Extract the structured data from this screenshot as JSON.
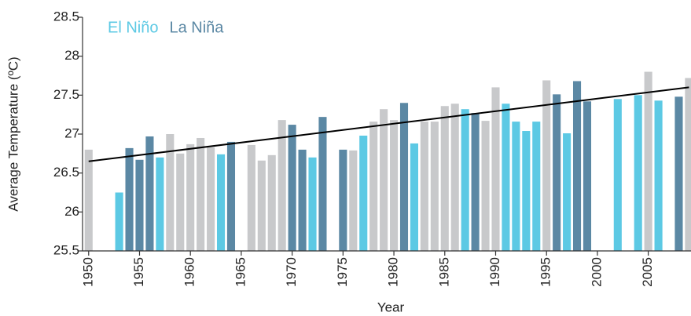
{
  "chart_data": {
    "type": "bar",
    "xlabel": "Year",
    "ylabel": "Average Temperature (ºC)",
    "legend": [
      {
        "name": "El Niño",
        "color": "#5cc9e4"
      },
      {
        "name": "La Niña",
        "color": "#5b88a4"
      }
    ],
    "x": [
      1950,
      1951,
      1952,
      1953,
      1954,
      1955,
      1956,
      1957,
      1958,
      1959,
      1960,
      1961,
      1962,
      1963,
      1964,
      1965,
      1966,
      1967,
      1968,
      1969,
      1970,
      1971,
      1972,
      1973,
      1974,
      1975,
      1976,
      1977,
      1978,
      1979,
      1980,
      1981,
      1982,
      1983,
      1984,
      1985,
      1986,
      1987,
      1988,
      1989,
      1990,
      1991,
      1992,
      1993,
      1994,
      1995,
      1996,
      1997,
      1998,
      1999,
      2000,
      2001,
      2002,
      2003,
      2004,
      2005,
      2006,
      2007,
      2008,
      2009
    ],
    "values": [
      26.8,
      null,
      null,
      26.25,
      26.82,
      26.67,
      26.97,
      26.7,
      27.0,
      26.75,
      26.87,
      26.95,
      26.83,
      26.74,
      26.9,
      null,
      26.86,
      26.66,
      26.73,
      27.18,
      27.12,
      26.8,
      26.7,
      27.22,
      null,
      26.8,
      26.79,
      26.98,
      27.16,
      27.32,
      27.18,
      27.4,
      26.88,
      27.16,
      27.16,
      27.36,
      27.39,
      27.32,
      27.27,
      27.17,
      27.6,
      27.39,
      27.16,
      27.04,
      27.16,
      27.69,
      27.51,
      27.01,
      27.68,
      27.42,
      null,
      null,
      27.45,
      null,
      27.5,
      27.8,
      27.43,
      null,
      27.48,
      27.72
    ],
    "colors": [
      "#c8c9cb",
      null,
      null,
      "#5cc9e4",
      "#5b88a4",
      "#5b88a4",
      "#5b88a4",
      "#5cc9e4",
      "#c8c9cb",
      "#c8c9cb",
      "#c8c9cb",
      "#c8c9cb",
      "#c8c9cb",
      "#5cc9e4",
      "#5b88a4",
      null,
      "#c8c9cb",
      "#c8c9cb",
      "#c8c9cb",
      "#c8c9cb",
      "#5b88a4",
      "#5b88a4",
      "#5cc9e4",
      "#5b88a4",
      null,
      "#5b88a4",
      "#c8c9cb",
      "#5cc9e4",
      "#c8c9cb",
      "#c8c9cb",
      "#c8c9cb",
      "#5b88a4",
      "#5cc9e4",
      "#c8c9cb",
      "#c8c9cb",
      "#c8c9cb",
      "#c8c9cb",
      "#5cc9e4",
      "#5b88a4",
      "#c8c9cb",
      "#c8c9cb",
      "#5cc9e4",
      "#5cc9e4",
      "#5cc9e4",
      "#5cc9e4",
      "#c8c9cb",
      "#5b88a4",
      "#5cc9e4",
      "#5b88a4",
      "#5b88a4",
      null,
      null,
      "#5cc9e4",
      null,
      "#5cc9e4",
      "#c8c9cb",
      "#5cc9e4",
      null,
      "#5b88a4",
      "#c8c9cb"
    ],
    "trend": {
      "x": [
        1950,
        2009
      ],
      "values": [
        26.65,
        27.6
      ],
      "color": "#000000"
    },
    "xlim": [
      1949.4,
      2009.2
    ],
    "ylim": [
      25.5,
      28.5
    ],
    "xticks": [
      1950,
      1955,
      1960,
      1965,
      1970,
      1975,
      1980,
      1985,
      1990,
      1995,
      2000,
      2005
    ],
    "yticks": [
      25.5,
      26,
      26.5,
      27,
      27.5,
      28,
      28.5
    ],
    "grid": false
  }
}
